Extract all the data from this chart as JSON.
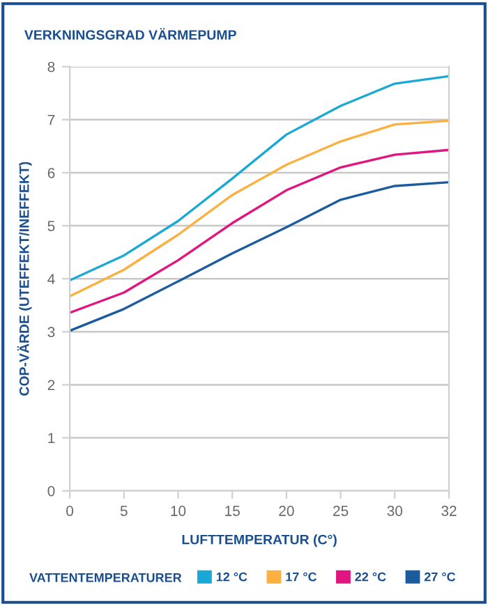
{
  "chart_data": {
    "type": "line",
    "title": "VERKNINGSGRAD VÄRMEPUMP",
    "xlabel": "LUFTTEMPERATUR (C°)",
    "ylabel": "COP-VÄRDE (UTEFFEKT/INEFFEKT)",
    "legend_title": "VATTENTEMPERATURER",
    "categories": [
      "0",
      "5",
      "10",
      "15",
      "20",
      "25",
      "30",
      "32"
    ],
    "series": [
      {
        "name": "12 °C",
        "color": "#1aa9d6",
        "values": [
          3.97,
          4.44,
          5.09,
          5.89,
          6.72,
          7.26,
          7.68,
          7.82
        ]
      },
      {
        "name": "17 °C",
        "color": "#fbb040",
        "values": [
          3.67,
          4.17,
          4.83,
          5.58,
          6.15,
          6.59,
          6.91,
          6.98
        ]
      },
      {
        "name": "22 °C",
        "color": "#e0157f",
        "values": [
          3.36,
          3.74,
          4.35,
          5.05,
          5.67,
          6.1,
          6.34,
          6.43
        ]
      },
      {
        "name": "27 °C",
        "color": "#1a5c9e",
        "values": [
          3.02,
          3.43,
          3.95,
          4.48,
          4.97,
          5.49,
          5.75,
          5.82
        ]
      }
    ],
    "ylim": [
      0,
      8
    ],
    "yticks": [
      0,
      1,
      2,
      3,
      4,
      5,
      6,
      7,
      8
    ],
    "grid": "y",
    "legend": "bottom",
    "marker": "none",
    "line_style": "solid"
  }
}
